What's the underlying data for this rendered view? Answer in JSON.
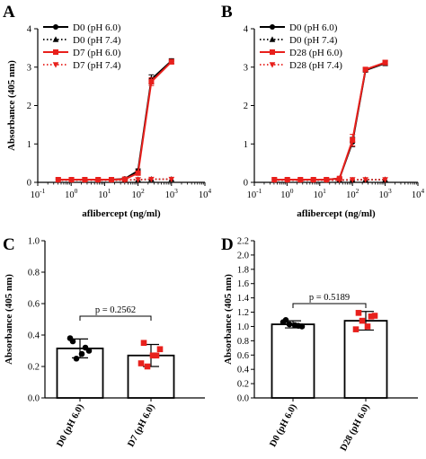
{
  "chart_data": [
    {
      "panel": "A",
      "type": "line",
      "xlabel": "aflibercept (ng/ml)",
      "ylabel": "Absorbance (405 nm)",
      "xscale": "log",
      "xlim": [
        0.1,
        10000
      ],
      "ylim": [
        0,
        4
      ],
      "xtick_labels": [
        {
          "base": "10",
          "exp": "-1",
          "x": 0.1
        },
        {
          "base": "10",
          "exp": "0",
          "x": 1
        },
        {
          "base": "10",
          "exp": "1",
          "x": 10
        },
        {
          "base": "10",
          "exp": "2",
          "x": 100
        },
        {
          "base": "10",
          "exp": "3",
          "x": 1000
        },
        {
          "base": "10",
          "exp": "4",
          "x": 10000
        }
      ],
      "ytick_labels": [
        "0",
        "1",
        "2",
        "3",
        "4"
      ],
      "legend_position": "top-left",
      "series": [
        {
          "name": "D0 (pH 6.0)",
          "color": "#000000",
          "marker": "circle",
          "line": "solid",
          "x": [
            0.41,
            1.02,
            2.56,
            6.4,
            16,
            40,
            100,
            250,
            1000
          ],
          "y": [
            0.07,
            0.07,
            0.07,
            0.07,
            0.07,
            0.09,
            0.3,
            2.68,
            3.16
          ],
          "err": [
            0,
            0,
            0,
            0,
            0,
            0.02,
            0.05,
            0.12,
            0.06
          ]
        },
        {
          "name": "D0 (pH 7.4)",
          "color": "#000000",
          "marker": "triangle-up",
          "line": "dotted",
          "x": [
            0.41,
            1.02,
            2.56,
            6.4,
            16,
            40,
            100,
            250,
            1000
          ],
          "y": [
            0.06,
            0.06,
            0.06,
            0.06,
            0.06,
            0.06,
            0.07,
            0.08,
            0.08
          ],
          "err": [
            0,
            0,
            0,
            0,
            0,
            0,
            0,
            0,
            0
          ]
        },
        {
          "name": "D7 (pH 6.0)",
          "color": "#e8201c",
          "marker": "square",
          "line": "solid",
          "x": [
            0.41,
            1.02,
            2.56,
            6.4,
            16,
            40,
            100,
            250,
            1000
          ],
          "y": [
            0.07,
            0.07,
            0.07,
            0.07,
            0.07,
            0.08,
            0.24,
            2.62,
            3.14
          ],
          "err": [
            0,
            0,
            0,
            0,
            0,
            0.02,
            0.05,
            0.1,
            0.06
          ]
        },
        {
          "name": "D7 (pH 7.4)",
          "color": "#e8201c",
          "marker": "triangle-down",
          "line": "dotted",
          "x": [
            0.41,
            1.02,
            2.56,
            6.4,
            16,
            40,
            100,
            250,
            1000
          ],
          "y": [
            0.06,
            0.06,
            0.06,
            0.06,
            0.06,
            0.06,
            0.07,
            0.08,
            0.08
          ],
          "err": [
            0,
            0,
            0,
            0,
            0,
            0,
            0,
            0,
            0
          ]
        }
      ]
    },
    {
      "panel": "B",
      "type": "line",
      "xlabel": "aflibercept (ng/ml)",
      "ylabel": "",
      "xscale": "log",
      "xlim": [
        0.1,
        10000
      ],
      "ylim": [
        0,
        4
      ],
      "xtick_labels": [
        {
          "base": "10",
          "exp": "-1",
          "x": 0.1
        },
        {
          "base": "10",
          "exp": "0",
          "x": 1
        },
        {
          "base": "10",
          "exp": "1",
          "x": 10
        },
        {
          "base": "10",
          "exp": "2",
          "x": 100
        },
        {
          "base": "10",
          "exp": "3",
          "x": 1000
        },
        {
          "base": "10",
          "exp": "4",
          "x": 10000
        }
      ],
      "ytick_labels": [
        "0",
        "1",
        "2",
        "3",
        "4"
      ],
      "legend_position": "top-left",
      "series": [
        {
          "name": "D0 (pH 6.0)",
          "color": "#000000",
          "marker": "circle",
          "line": "solid",
          "x": [
            0.41,
            1.02,
            2.56,
            6.4,
            16,
            40,
            100,
            250,
            1000
          ],
          "y": [
            0.07,
            0.07,
            0.07,
            0.07,
            0.07,
            0.1,
            1.05,
            2.92,
            3.1
          ],
          "err": [
            0,
            0,
            0,
            0,
            0,
            0.02,
            0.12,
            0.05,
            0.06
          ]
        },
        {
          "name": "D0 (pH 7.4)",
          "color": "#000000",
          "marker": "triangle-up",
          "line": "dotted",
          "x": [
            0.41,
            1.02,
            2.56,
            6.4,
            16,
            40,
            100,
            250,
            1000
          ],
          "y": [
            0.06,
            0.06,
            0.06,
            0.06,
            0.06,
            0.06,
            0.06,
            0.07,
            0.07
          ],
          "err": [
            0,
            0,
            0,
            0,
            0,
            0,
            0,
            0,
            0
          ]
        },
        {
          "name": "D28 (pH 6.0)",
          "color": "#e8201c",
          "marker": "square",
          "line": "solid",
          "x": [
            0.41,
            1.02,
            2.56,
            6.4,
            16,
            40,
            100,
            250,
            1000
          ],
          "y": [
            0.07,
            0.07,
            0.07,
            0.07,
            0.07,
            0.1,
            1.1,
            2.94,
            3.12
          ],
          "err": [
            0,
            0,
            0,
            0,
            0,
            0.02,
            0.15,
            0.05,
            0.06
          ]
        },
        {
          "name": "D28 (pH 7.4)",
          "color": "#e8201c",
          "marker": "triangle-down",
          "line": "dotted",
          "x": [
            0.41,
            1.02,
            2.56,
            6.4,
            16,
            40,
            100,
            250,
            1000
          ],
          "y": [
            0.06,
            0.06,
            0.06,
            0.06,
            0.06,
            0.06,
            0.07,
            0.07,
            0.07
          ],
          "err": [
            0,
            0,
            0,
            0,
            0,
            0,
            0,
            0,
            0
          ]
        }
      ]
    },
    {
      "panel": "C",
      "type": "bar",
      "ylabel": "Absorbance (405 nm)",
      "ylim": [
        0,
        1.0
      ],
      "ytick_labels": [
        "0.0",
        "0.2",
        "0.4",
        "0.6",
        "0.8",
        "1.0"
      ],
      "categories": [
        "D0 (pH 6.0)",
        "D7 (pH 6.0)"
      ],
      "values": [
        0.315,
        0.27
      ],
      "errors": [
        0.06,
        0.07
      ],
      "point_colors": [
        "#000000",
        "#e8201c"
      ],
      "point_markers": [
        "circle",
        "square"
      ],
      "points": [
        [
          0.36,
          0.32,
          0.25,
          0.3,
          0.38,
          0.28
        ],
        [
          0.35,
          0.27,
          0.2,
          0.31,
          0.22,
          0.27
        ]
      ],
      "annotation": "p = 0.2562",
      "annotation_y": 0.52
    },
    {
      "panel": "D",
      "type": "bar",
      "ylabel": "Absorbance (405 nm)",
      "ylim": [
        0,
        2.2
      ],
      "ytick_labels": [
        "0.0",
        "0.2",
        "0.4",
        "0.6",
        "0.8",
        "1.0",
        "1.2",
        "1.4",
        "1.6",
        "1.8",
        "2.0",
        "2.2"
      ],
      "categories": [
        "D0 (pH 6.0)",
        "D28 (pH 6.0)"
      ],
      "values": [
        1.03,
        1.08
      ],
      "errors": [
        0.05,
        0.13
      ],
      "point_colors": [
        "#000000",
        "#e8201c"
      ],
      "point_markers": [
        "circle",
        "square"
      ],
      "points": [
        [
          1.09,
          1.01,
          1.03,
          1.0,
          1.06,
          1.02
        ],
        [
          1.19,
          1.14,
          1.08,
          1.15,
          0.96,
          1.0
        ]
      ],
      "annotation": "p = 0.5189",
      "annotation_y": 1.32
    }
  ]
}
